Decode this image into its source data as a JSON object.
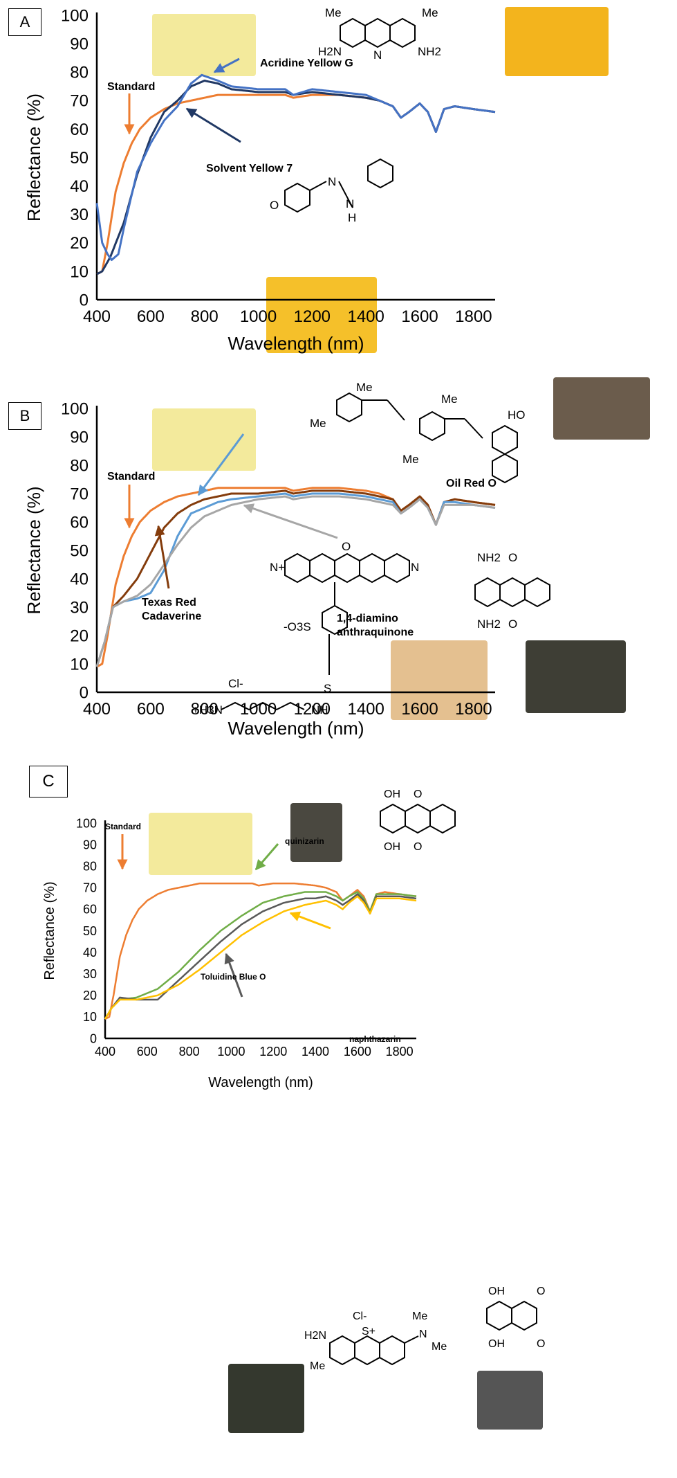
{
  "chart_data": [
    {
      "type": "line",
      "panel_label": "A",
      "xlabel": "Wavelength (nm)",
      "ylabel": "Reflectance (%)",
      "xlim": [
        400,
        1880
      ],
      "ylim": [
        0,
        100
      ],
      "xticks": [
        400,
        600,
        800,
        1000,
        1200,
        1400,
        1600,
        1800
      ],
      "yticks": [
        0,
        10,
        20,
        30,
        40,
        50,
        60,
        70,
        80,
        90,
        100
      ],
      "grid": false,
      "series": [
        {
          "name": "Standard",
          "color": "#ed7d31",
          "x": [
            400,
            420,
            440,
            470,
            500,
            530,
            560,
            600,
            650,
            700,
            750,
            800,
            850,
            900,
            1000,
            1100,
            1130,
            1200,
            1300,
            1400,
            1450,
            1500,
            1530,
            1560,
            1600,
            1630,
            1660,
            1690,
            1730,
            1800,
            1880
          ],
          "y": [
            9,
            10,
            20,
            38,
            48,
            55,
            60,
            64,
            67,
            69,
            70,
            71,
            72,
            72,
            72,
            72,
            71,
            72,
            72,
            71,
            70,
            68,
            64,
            66,
            69,
            66,
            59,
            67,
            68,
            67,
            66
          ]
        },
        {
          "name": "Solvent Yellow 7",
          "color": "#203864",
          "x": [
            400,
            420,
            450,
            500,
            550,
            600,
            650,
            700,
            750,
            800,
            850,
            900,
            1000,
            1100,
            1130,
            1200,
            1300,
            1400,
            1450,
            1500,
            1530,
            1560,
            1600,
            1630,
            1660,
            1690,
            1730,
            1800,
            1880
          ],
          "y": [
            9,
            10,
            15,
            27,
            44,
            57,
            66,
            70,
            75,
            77,
            76,
            74,
            73,
            73,
            72,
            73,
            72,
            71,
            70,
            68,
            64,
            66,
            69,
            66,
            59,
            67,
            68,
            67,
            66
          ]
        },
        {
          "name": "Acridine Yellow G",
          "color": "#4472c4",
          "x": [
            400,
            420,
            440,
            455,
            480,
            500,
            550,
            600,
            650,
            700,
            750,
            790,
            850,
            900,
            1000,
            1100,
            1130,
            1200,
            1300,
            1400,
            1450,
            1500,
            1530,
            1560,
            1600,
            1630,
            1660,
            1690,
            1730,
            1800,
            1880
          ],
          "y": [
            34,
            20,
            16,
            14,
            16,
            25,
            45,
            55,
            63,
            68,
            76,
            79,
            77,
            75,
            74,
            74,
            72,
            74,
            73,
            72,
            70,
            68,
            64,
            66,
            69,
            66,
            59,
            67,
            68,
            67,
            66
          ]
        }
      ],
      "annotations": {
        "standard": "Standard",
        "dye1": "Acridine Yellow G",
        "dye2": "Solvent Yellow 7",
        "me": "Me",
        "h2n": "H2N",
        "nh2": "NH2",
        "n": "N",
        "h": "H",
        "o": "O"
      }
    },
    {
      "type": "line",
      "panel_label": "B",
      "xlabel": "Wavelength (nm)",
      "ylabel": "Reflectance (%)",
      "xlim": [
        400,
        1880
      ],
      "ylim": [
        0,
        100
      ],
      "xticks": [
        400,
        600,
        800,
        1000,
        1200,
        1400,
        1600,
        1800
      ],
      "yticks": [
        0,
        10,
        20,
        30,
        40,
        50,
        60,
        70,
        80,
        90,
        100
      ],
      "grid": false,
      "series": [
        {
          "name": "Standard",
          "color": "#ed7d31",
          "x": [
            400,
            420,
            440,
            470,
            500,
            530,
            560,
            600,
            650,
            700,
            750,
            800,
            850,
            900,
            1000,
            1100,
            1130,
            1200,
            1300,
            1400,
            1450,
            1500,
            1530,
            1560,
            1600,
            1630,
            1660,
            1690,
            1730,
            1800,
            1880
          ],
          "y": [
            9,
            10,
            20,
            38,
            48,
            55,
            60,
            64,
            67,
            69,
            70,
            71,
            72,
            72,
            72,
            72,
            71,
            72,
            72,
            71,
            70,
            68,
            64,
            66,
            69,
            66,
            59,
            67,
            68,
            67,
            66
          ]
        },
        {
          "name": "Texas Red Cadaverine",
          "color": "#843c0c",
          "x": [
            400,
            430,
            460,
            500,
            550,
            600,
            650,
            700,
            750,
            800,
            850,
            900,
            1000,
            1100,
            1130,
            1200,
            1300,
            1400,
            1450,
            1500,
            1530,
            1560,
            1600,
            1630,
            1660,
            1690,
            1730,
            1800,
            1880
          ],
          "y": [
            9,
            18,
            30,
            34,
            40,
            49,
            58,
            63,
            66,
            68,
            69,
            70,
            70,
            71,
            70,
            71,
            71,
            70,
            69,
            68,
            64,
            66,
            69,
            66,
            59,
            67,
            68,
            67,
            66
          ]
        },
        {
          "name": "Oil Red O",
          "color": "#5b9bd5",
          "x": [
            400,
            430,
            460,
            500,
            550,
            600,
            650,
            700,
            750,
            800,
            850,
            900,
            1000,
            1100,
            1130,
            1200,
            1300,
            1400,
            1450,
            1500,
            1530,
            1560,
            1600,
            1630,
            1660,
            1690,
            1730,
            1800,
            1880
          ],
          "y": [
            9,
            18,
            30,
            32,
            33,
            35,
            43,
            55,
            63,
            65,
            67,
            68,
            69,
            70,
            69,
            70,
            70,
            69,
            68,
            67,
            63,
            65,
            68,
            65,
            59,
            67,
            67,
            66,
            65
          ]
        },
        {
          "name": "1,4-diamino anthraquinone",
          "color": "#a6a6a6",
          "x": [
            400,
            430,
            460,
            500,
            550,
            600,
            650,
            700,
            750,
            800,
            850,
            900,
            1000,
            1100,
            1130,
            1200,
            1300,
            1400,
            1450,
            1500,
            1530,
            1560,
            1600,
            1630,
            1660,
            1690,
            1730,
            1800,
            1880
          ],
          "y": [
            9,
            18,
            30,
            32,
            34,
            38,
            45,
            52,
            58,
            62,
            64,
            66,
            68,
            69,
            68,
            69,
            69,
            68,
            67,
            66,
            63,
            65,
            68,
            65,
            59,
            66,
            66,
            66,
            65
          ]
        }
      ],
      "annotations": {
        "standard": "Standard",
        "dye1": "Oil Red O",
        "dye2a": "1,4-diamino",
        "dye2b": "anthraquinone",
        "dye3a": "Texas Red",
        "dye3b": "Cadaverine",
        "me": "Me",
        "ho": "HO",
        "nh2": "NH2",
        "o": "O",
        "nplus": "N+",
        "n": "N",
        "so3": "-O3S",
        "s": "S",
        "nh": "NH",
        "cl": "Cl-",
        "h3n": "+H3N"
      }
    },
    {
      "type": "line",
      "panel_label": "C",
      "xlabel": "Wavelength (nm)",
      "ylabel": "Reflectance (%)",
      "xlim": [
        400,
        1880
      ],
      "ylim": [
        0,
        100
      ],
      "xticks": [
        400,
        600,
        800,
        1000,
        1200,
        1400,
        1600,
        1800
      ],
      "yticks": [
        0,
        10,
        20,
        30,
        40,
        50,
        60,
        70,
        80,
        90,
        100
      ],
      "grid": false,
      "series": [
        {
          "name": "Standard",
          "color": "#ed7d31",
          "x": [
            400,
            420,
            440,
            470,
            500,
            530,
            560,
            600,
            650,
            700,
            750,
            800,
            850,
            900,
            1000,
            1100,
            1130,
            1200,
            1300,
            1400,
            1450,
            1500,
            1530,
            1560,
            1600,
            1630,
            1660,
            1690,
            1730,
            1800,
            1880
          ],
          "y": [
            9,
            10,
            20,
            38,
            48,
            55,
            60,
            64,
            67,
            69,
            70,
            71,
            72,
            72,
            72,
            72,
            71,
            72,
            72,
            71,
            70,
            68,
            64,
            66,
            69,
            66,
            59,
            67,
            68,
            67,
            66
          ]
        },
        {
          "name": "quinizarin",
          "color": "#70ad47",
          "x": [
            400,
            430,
            470,
            550,
            650,
            750,
            850,
            950,
            1050,
            1150,
            1250,
            1350,
            1400,
            1450,
            1500,
            1530,
            1560,
            1600,
            1630,
            1660,
            1690,
            1730,
            1800,
            1880
          ],
          "y": [
            9,
            14,
            18,
            19,
            23,
            31,
            41,
            50,
            57,
            63,
            66,
            68,
            68,
            68,
            66,
            64,
            66,
            68,
            65,
            59,
            67,
            67,
            67,
            66
          ]
        },
        {
          "name": "Toluidine Blue O",
          "color": "#595959",
          "x": [
            400,
            430,
            470,
            550,
            650,
            750,
            850,
            950,
            1050,
            1150,
            1250,
            1350,
            1400,
            1450,
            1500,
            1530,
            1560,
            1600,
            1630,
            1660,
            1690,
            1730,
            1800,
            1880
          ],
          "y": [
            9,
            14,
            19,
            18,
            18,
            27,
            36,
            45,
            53,
            59,
            63,
            65,
            65,
            66,
            64,
            62,
            64,
            67,
            64,
            58,
            66,
            66,
            66,
            65
          ]
        },
        {
          "name": "naphthazarin",
          "color": "#ffc000",
          "x": [
            400,
            430,
            470,
            550,
            650,
            750,
            850,
            950,
            1050,
            1150,
            1250,
            1350,
            1400,
            1450,
            1500,
            1530,
            1560,
            1600,
            1630,
            1660,
            1690,
            1730,
            1800,
            1880
          ],
          "y": [
            9,
            14,
            18,
            18,
            20,
            25,
            32,
            40,
            48,
            54,
            59,
            62,
            63,
            64,
            62,
            60,
            63,
            66,
            63,
            58,
            65,
            65,
            65,
            64
          ]
        }
      ],
      "annotations": {
        "standard": "Standard",
        "dye1": "quinizarin",
        "dye2": "naphthazarin",
        "dye3": "Toluidine Blue O",
        "oh": "OH",
        "o": "O",
        "cl": "Cl-",
        "splus": "S+",
        "n": "N",
        "h2n": "H2N",
        "me": "Me"
      }
    }
  ],
  "swatch_colors": {
    "standard": "#f3ea9c",
    "solvent_yellow": "#f5c02a",
    "acridine_yellow": "#f3b41d",
    "oil_red": "#6b5c4c",
    "anthraquinone": "#3e3e35",
    "texas_red": "#e4c090",
    "quinizarin": "#4a4840",
    "toluidine": "#34382e",
    "naphthazarin": "#555555"
  }
}
